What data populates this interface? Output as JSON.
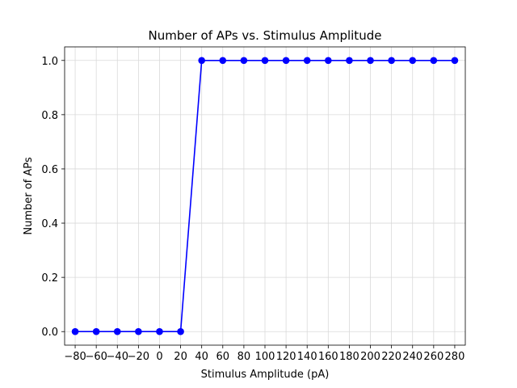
{
  "chart_data": {
    "type": "line",
    "title": "Number of APs vs. Stimulus Amplitude",
    "xlabel": "Stimulus Amplitude (pA)",
    "ylabel": "Number of APs",
    "xlim": [
      -90,
      290
    ],
    "ylim": [
      -0.05,
      1.05
    ],
    "xticks": [
      -80,
      -60,
      -40,
      -20,
      0,
      20,
      40,
      60,
      80,
      100,
      120,
      140,
      160,
      180,
      200,
      220,
      240,
      260,
      280
    ],
    "xtick_labels": [
      "−80",
      "−60",
      "−40",
      "−20",
      "0",
      "20",
      "40",
      "60",
      "80",
      "100",
      "120",
      "140",
      "160",
      "180",
      "200",
      "220",
      "240",
      "260",
      "280"
    ],
    "yticks": [
      0.0,
      0.2,
      0.4,
      0.6,
      0.8,
      1.0
    ],
    "ytick_labels": [
      "0.0",
      "0.2",
      "0.4",
      "0.6",
      "0.8",
      "1.0"
    ],
    "grid": true,
    "series": [
      {
        "color": "#0000ff",
        "marker": "circle",
        "x": [
          -80,
          -60,
          -40,
          -20,
          0,
          20,
          40,
          60,
          80,
          100,
          120,
          140,
          160,
          180,
          200,
          220,
          240,
          260,
          280
        ],
        "y": [
          0,
          0,
          0,
          0,
          0,
          0,
          1,
          1,
          1,
          1,
          1,
          1,
          1,
          1,
          1,
          1,
          1,
          1,
          1
        ]
      }
    ]
  }
}
